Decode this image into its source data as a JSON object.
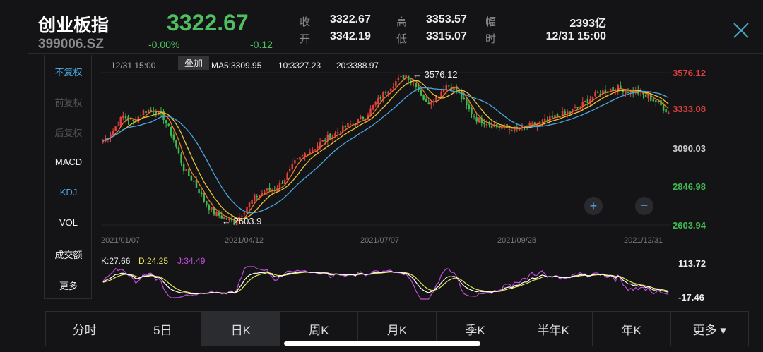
{
  "header": {
    "name": "创业板指",
    "code": "399006.SZ",
    "price": "3322.67",
    "change_pct": "-0.00%",
    "change": "-0.12",
    "stats": [
      {
        "label": "收",
        "value": "3322.67"
      },
      {
        "label": "开",
        "value": "3342.19"
      },
      {
        "label": "高",
        "value": "3353.57"
      },
      {
        "label": "低",
        "value": "3315.07"
      },
      {
        "label": "幅",
        "value": "2393亿"
      },
      {
        "label": "时",
        "value": "12/31 15:00"
      }
    ]
  },
  "sidebar": {
    "items": [
      {
        "label": "不复权",
        "state": "active"
      },
      {
        "label": "前复权",
        "state": "disabled"
      },
      {
        "label": "后复权",
        "state": "disabled"
      },
      {
        "label": "MACD",
        "state": "normal"
      },
      {
        "label": "KDJ",
        "state": "active"
      },
      {
        "label": "VOL",
        "state": "normal"
      },
      {
        "label": "成交额",
        "state": "normal"
      },
      {
        "label": "更多",
        "state": "normal"
      }
    ]
  },
  "main_chart": {
    "time": "12/31 15:00",
    "overlay_label": "叠加",
    "ma5": "MA5:3309.95",
    "ma10": "10:3327.23",
    "ma20": "20:3388.97",
    "max_label": "← 3576.12",
    "min_label": "← 2603.9",
    "y_ticks": [
      "3576.12",
      "3333.08",
      "3090.03",
      "2846.98",
      "2603.94"
    ],
    "x_ticks": [
      "2021/01/07",
      "2021/04/12",
      "2021/07/07",
      "2021/09/28",
      "2021/12/31"
    ],
    "zoom_in": "+",
    "zoom_out": "−"
  },
  "kdj": {
    "k": "K:27.66",
    "d": "D:24.25",
    "j": "J:34.49",
    "max": "113.72",
    "min": "-17.46"
  },
  "colors": {
    "up": "#e0403f",
    "down": "#3fb950",
    "ma5": "#f07a28",
    "ma10": "#e8c23a",
    "ma20": "#4aa6e0",
    "k": "#ffffff",
    "d": "#e8e85a",
    "j": "#c04ed8",
    "accent": "#4aa6e0"
  },
  "chart_data": {
    "type": "candlestick",
    "ylim": [
      2603.94,
      3576.12
    ],
    "high": 3576.12,
    "low": 2603.9,
    "closes": [
      3140,
      3210,
      3300,
      3260,
      3330,
      3340,
      3290,
      3150,
      2960,
      2880,
      2760,
      2680,
      2650,
      2620,
      2700,
      2780,
      2820,
      2830,
      2900,
      3000,
      3060,
      3100,
      3150,
      3190,
      3230,
      3260,
      3300,
      3380,
      3460,
      3520,
      3560,
      3500,
      3380,
      3420,
      3500,
      3470,
      3360,
      3280,
      3260,
      3230,
      3220,
      3215,
      3230,
      3250,
      3270,
      3300,
      3320,
      3350,
      3400,
      3440,
      3470,
      3480,
      3460,
      3450,
      3420,
      3380,
      3322
    ]
  },
  "tabs": [
    {
      "label": "分时"
    },
    {
      "label": "5日"
    },
    {
      "label": "日K",
      "active": true
    },
    {
      "label": "周K"
    },
    {
      "label": "月K"
    },
    {
      "label": "季K"
    },
    {
      "label": "半年K"
    },
    {
      "label": "年K"
    },
    {
      "label": "更多 ▾"
    }
  ]
}
